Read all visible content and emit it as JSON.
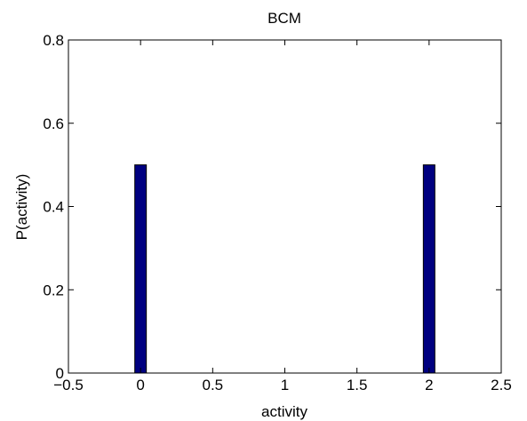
{
  "chart_data": {
    "type": "bar",
    "title": "BCM",
    "xlabel": "activity",
    "ylabel": "P(activity)",
    "xlim": [
      -0.5,
      2.5
    ],
    "ylim": [
      0,
      0.8
    ],
    "xticks": [
      -0.5,
      0,
      0.5,
      1,
      1.5,
      2,
      2.5
    ],
    "xtick_labels": [
      "−0.5",
      "0",
      "0.5",
      "1",
      "1.5",
      "2",
      "2.5"
    ],
    "yticks": [
      0,
      0.2,
      0.4,
      0.6,
      0.8
    ],
    "ytick_labels": [
      "0",
      "0.2",
      "0.4",
      "0.6",
      "0.8"
    ],
    "bar_width": 0.08,
    "bars": [
      {
        "x": 0,
        "value": 0.5
      },
      {
        "x": 2,
        "value": 0.5
      }
    ],
    "bar_color": "#000080",
    "grid": false
  }
}
